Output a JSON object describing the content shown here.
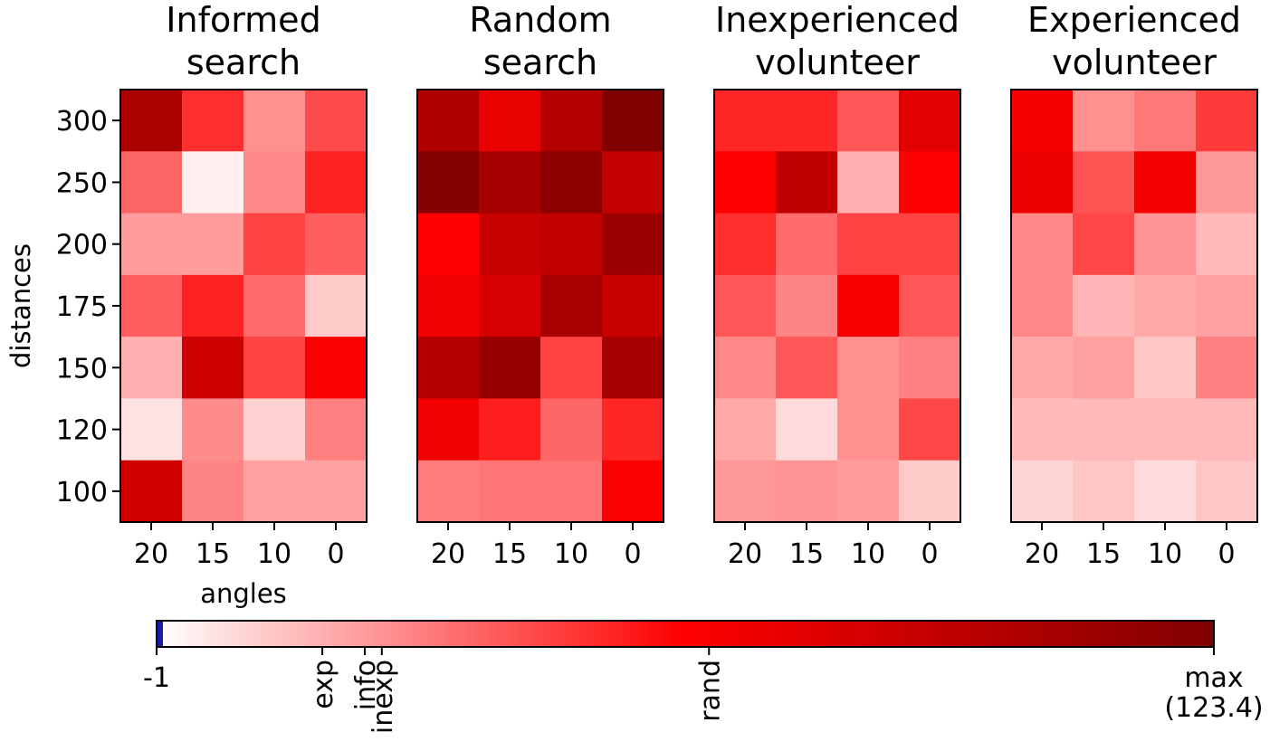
{
  "chart_data": {
    "type": "heatmap",
    "ylabel": "distances",
    "xlabel": "angles",
    "x_ticks": [
      "20",
      "15",
      "10",
      "0"
    ],
    "y_ticks": [
      "300",
      "250",
      "200",
      "175",
      "150",
      "120",
      "100"
    ],
    "panels": [
      {
        "title": [
          "Informed",
          "search"
        ],
        "values": [
          [
            102,
            50,
            26,
            43
          ],
          [
            36,
            3,
            28,
            53
          ],
          [
            23,
            23,
            45,
            38
          ],
          [
            38,
            53,
            35,
            12
          ],
          [
            18,
            86,
            45,
            63
          ],
          [
            6,
            27,
            10,
            30
          ],
          [
            84,
            29,
            22,
            22
          ]
        ]
      },
      {
        "title": [
          "Random",
          "search"
        ],
        "values": [
          [
            100,
            72,
            98,
            123
          ],
          [
            121,
            105,
            117,
            90
          ],
          [
            61,
            88,
            91,
            110
          ],
          [
            67,
            81,
            104,
            88
          ],
          [
            98,
            112,
            45,
            105
          ],
          [
            67,
            54,
            36,
            52
          ],
          [
            31,
            33,
            33,
            62
          ]
        ]
      },
      {
        "title": [
          "Inexperienced",
          "volunteer"
        ],
        "values": [
          [
            52,
            52,
            40,
            75
          ],
          [
            61,
            92,
            18,
            61
          ],
          [
            50,
            35,
            45,
            45
          ],
          [
            40,
            29,
            64,
            40
          ],
          [
            28,
            40,
            26,
            30
          ],
          [
            20,
            8,
            26,
            44
          ],
          [
            24,
            25,
            23,
            12
          ]
        ]
      },
      {
        "title": [
          "Experienced",
          "volunteer"
        ],
        "values": [
          [
            65,
            26,
            32,
            47
          ],
          [
            70,
            41,
            66,
            24
          ],
          [
            28,
            44,
            25,
            16
          ],
          [
            28,
            17,
            20,
            22
          ],
          [
            20,
            22,
            13,
            30
          ],
          [
            16,
            16,
            16,
            16
          ],
          [
            9,
            13,
            8,
            13
          ]
        ]
      }
    ],
    "colorbar": {
      "min": -1,
      "max": 123.4,
      "min_label": "-1",
      "max_label": [
        "max",
        "(123.4)"
      ],
      "markers": [
        {
          "label": "exp",
          "value": 18.5
        },
        {
          "label": "info",
          "value": 23.5
        },
        {
          "label": "inexp",
          "value": 25.5
        },
        {
          "label": "rand",
          "value": 64
        }
      ]
    },
    "colors": {
      "low_mark": "#1a1aa6",
      "white": "#ffffff",
      "red": "#ff0000",
      "dark": "#800000"
    }
  }
}
